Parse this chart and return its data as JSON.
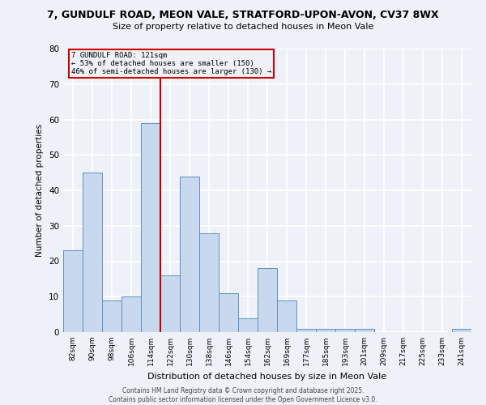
{
  "title_line1": "7, GUNDULF ROAD, MEON VALE, STRATFORD-UPON-AVON, CV37 8WX",
  "title_line2": "Size of property relative to detached houses in Meon Vale",
  "xlabel": "Distribution of detached houses by size in Meon Vale",
  "ylabel": "Number of detached properties",
  "categories": [
    "82sqm",
    "90sqm",
    "98sqm",
    "106sqm",
    "114sqm",
    "122sqm",
    "130sqm",
    "138sqm",
    "146sqm",
    "154sqm",
    "162sqm",
    "169sqm",
    "177sqm",
    "185sqm",
    "193sqm",
    "201sqm",
    "209sqm",
    "217sqm",
    "225sqm",
    "233sqm",
    "241sqm"
  ],
  "bar_heights": [
    23,
    45,
    9,
    10,
    59,
    16,
    44,
    28,
    11,
    4,
    18,
    9,
    1,
    1,
    1,
    1,
    0,
    0,
    0,
    0,
    1
  ],
  "ref_line_label": "7 GUNDULF ROAD: 121sqm",
  "annotation_line2": "← 53% of detached houses are smaller (150)",
  "annotation_line3": "46% of semi-detached houses are larger (130) →",
  "bar_color": "#c8d8ee",
  "bar_edge_color": "#6090c0",
  "ref_line_color": "#cc0000",
  "annotation_box_color": "#cc0000",
  "background_color": "#eef2f8",
  "grid_color": "#ffffff",
  "footer_line1": "Contains HM Land Registry data © Crown copyright and database right 2025.",
  "footer_line2": "Contains public sector information licensed under the Open Government Licence v3.0.",
  "ylim": [
    0,
    80
  ],
  "yticks": [
    0,
    10,
    20,
    30,
    40,
    50,
    60,
    70,
    80
  ]
}
